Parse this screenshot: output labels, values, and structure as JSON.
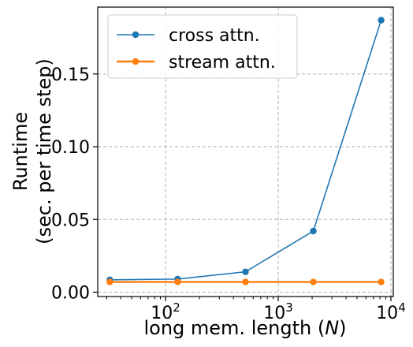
{
  "chart_data": {
    "type": "line",
    "x_scale": "log",
    "x": [
      32,
      128,
      512,
      2048,
      8192
    ],
    "series": [
      {
        "name": "cross attn.",
        "color": "#1f77b4",
        "values": [
          0.0085,
          0.009,
          0.014,
          0.042,
          0.187
        ]
      },
      {
        "name": "stream attn.",
        "color": "#ff7f0e",
        "values": [
          0.007,
          0.007,
          0.007,
          0.007,
          0.007
        ]
      }
    ],
    "xlabel": "long mem. length (N)",
    "xlabel_prefix": "long mem. length (",
    "xlabel_var": "N",
    "xlabel_suffix": ")",
    "ylabel_line1": "Runtime",
    "ylabel_line2": "(sec. per time step)",
    "ylim": [
      -0.003,
      0.196
    ],
    "xlim": [
      25,
      10500
    ],
    "y_ticks": [
      {
        "value": 0.0,
        "label": "0.00"
      },
      {
        "value": 0.05,
        "label": "0.05"
      },
      {
        "value": 0.1,
        "label": "0.10"
      },
      {
        "value": 0.15,
        "label": "0.15"
      }
    ],
    "x_ticks": [
      {
        "value": 100,
        "base": "10",
        "exp": "2"
      },
      {
        "value": 1000,
        "base": "10",
        "exp": "3"
      },
      {
        "value": 10000,
        "base": "10",
        "exp": "4"
      }
    ],
    "grid": true,
    "legend_position": "top-left"
  }
}
